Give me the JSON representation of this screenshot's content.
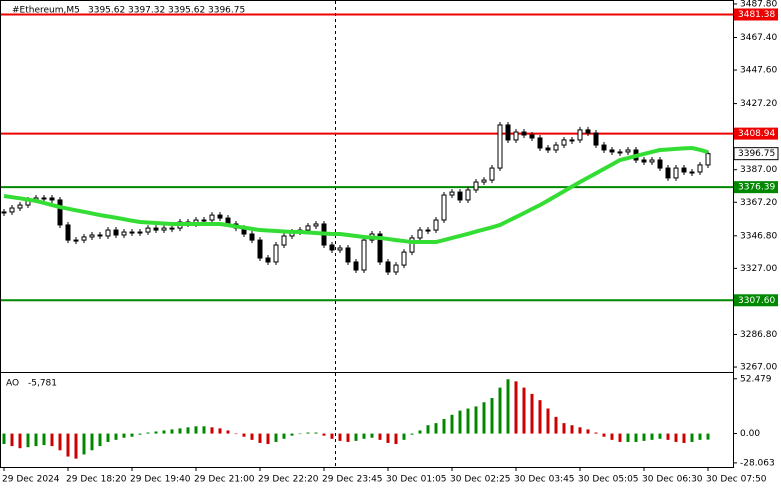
{
  "chart_data": [
    {
      "type": "candlestick",
      "title": "#Ethereum,M5",
      "quote": [
        3395.62,
        3397.32,
        3395.62,
        3396.75
      ],
      "categories": [
        "29 Dec 2024",
        null,
        null,
        null,
        null,
        null,
        null,
        null,
        "29 Dec 18:20",
        null,
        null,
        null,
        null,
        null,
        null,
        null,
        "29 Dec 19:40",
        null,
        null,
        null,
        null,
        null,
        null,
        null,
        "29 Dec 21:00",
        null,
        null,
        null,
        null,
        null,
        null,
        null,
        "29 Dec 22:20",
        null,
        null,
        null,
        null,
        null,
        null,
        null,
        "29 Dec 23:45",
        null,
        null,
        null,
        null,
        null,
        null,
        null,
        "30 Dec 01:05",
        null,
        null,
        null,
        null,
        null,
        null,
        null,
        "30 Dec 02:25",
        null,
        null,
        null,
        null,
        null,
        null,
        null,
        "30 Dec 03:45",
        null,
        null,
        null,
        null,
        null,
        null,
        null,
        "30 Dec 05:05",
        null,
        null,
        null,
        null,
        null,
        null,
        null,
        "30 Dec 06:30",
        null,
        null,
        null,
        null,
        null,
        null,
        null,
        "30 Dec 07:50"
      ],
      "series": [
        {
          "type": "candlestick",
          "color": "#000000",
          "values": [
            3361.3,
            3363.7,
            3365.5,
            3368.6,
            3369.8,
            3369.8,
            3368.6,
            3353.4,
            3344.2,
            3344.2,
            3346.1,
            3347.3,
            3346.7,
            3350.3,
            3347.3,
            3349.1,
            3349.1,
            3349.1,
            3351.5,
            3350.3,
            3351.5,
            3351.5,
            3355.2,
            3354.0,
            3356.4,
            3356.4,
            3359.4,
            3357.6,
            3354.0,
            3351.5,
            3347.9,
            3344.2,
            3333.3,
            3330.9,
            3341.2,
            3346.7,
            3349.1,
            3350.3,
            3352.8,
            3354.0,
            3341.2,
            3338.2,
            3339.4,
            3330.9,
            3326.0,
            3344.2,
            3347.9,
            3330.9,
            3324.8,
            3329.0,
            3336.9,
            3345.5,
            3350.3,
            3350.3,
            3356.4,
            3371.6,
            3373.4,
            3368.6,
            3374.7,
            3379.5,
            3380.7,
            3388.0,
            3414.2,
            3405.1,
            3409.9,
            3408.1,
            3406.3,
            3400.2,
            3399.0,
            3402.0,
            3405.1,
            3405.1,
            3411.2,
            3409.3,
            3402.0,
            3399.0,
            3397.8,
            3397.8,
            3399.0,
            3392.9,
            3391.7,
            3392.9,
            3388.0,
            3382.0,
            3388.0,
            3385.6,
            3385.6,
            3389.9,
            3396.75
          ]
        },
        {
          "type": "line",
          "color": "#33dd33",
          "values": [
            3371.0,
            3370.3,
            3369.6,
            3368.8,
            3368.0,
            3366.8,
            3365.5,
            3364.3,
            3363.3,
            3362.3,
            3361.4,
            3360.4,
            3359.4,
            3358.6,
            3357.8,
            3356.9,
            3356.0,
            3355.2,
            3354.9,
            3354.6,
            3354.3,
            3354.0,
            3354.0,
            3354.0,
            3354.0,
            3354.0,
            3354.0,
            3354.0,
            3353.3,
            3352.5,
            3351.8,
            3351.0,
            3350.3,
            3350.0,
            3349.7,
            3349.4,
            3349.2,
            3349.1,
            3348.8,
            3348.5,
            3348.2,
            3347.9,
            3347.9,
            3347.3,
            3346.7,
            3346.1,
            3345.7,
            3345.5,
            3344.9,
            3344.2,
            3343.6,
            3343.0,
            3343.0,
            3343.0,
            3343.0,
            3344.2,
            3345.5,
            3346.7,
            3348.0,
            3349.4,
            3350.7,
            3352.0,
            3353.4,
            3355.8,
            3358.2,
            3360.6,
            3363.1,
            3365.5,
            3368.3,
            3371.1,
            3373.9,
            3376.7,
            3379.5,
            3382.2,
            3384.8,
            3387.5,
            3390.2,
            3392.9,
            3394.1,
            3395.4,
            3396.6,
            3397.8,
            3399.0,
            3399.3,
            3399.7,
            3400.0,
            3400.2,
            3399.1,
            3397.7
          ]
        }
      ],
      "levels": [
        {
          "value": 3481.38,
          "color": "#ee0000"
        },
        {
          "value": 3408.94,
          "color": "#ee0000"
        },
        {
          "value": 3376.39,
          "color": "#008800"
        },
        {
          "value": 3307.6,
          "label": "3307.60",
          "color": "#008800"
        }
      ],
      "ylim": [
        3265.2,
        3490.2
      ],
      "yticks": [
        {
          "value": 3487.8,
          "label": "3487.80"
        },
        {
          "value": 3467.4,
          "label": "3467.40"
        },
        {
          "value": 3447.6,
          "label": "3447.60"
        },
        {
          "value": 3427.2,
          "label": "3427.20"
        },
        {
          "value": 3387,
          "label": "3387.00"
        },
        {
          "value": 3367.2,
          "label": "3367.20"
        },
        {
          "value": 3346.8,
          "label": "3346.80"
        },
        {
          "value": 3327,
          "label": "3327.00"
        },
        {
          "value": 3286.8,
          "label": "3286.80"
        },
        {
          "value": 3267,
          "label": "3267.00"
        }
      ]
    },
    {
      "type": "bar",
      "title": "AO",
      "current": {
        "value": -5.781,
        "label": "-5,781"
      },
      "up_color": "#008800",
      "down_color": "#cc0000",
      "values": [
        -10,
        -12,
        -14,
        -13,
        -12,
        -11,
        -12,
        -16,
        -22,
        -24,
        -20,
        -16,
        -12,
        -8,
        -6,
        -4,
        -3,
        -1,
        1,
        2,
        3,
        4,
        5,
        6,
        7,
        7,
        6,
        5,
        3,
        0,
        -3,
        -6,
        -9,
        -10,
        -8,
        -5,
        -2,
        0,
        1,
        1,
        -2,
        -5,
        -7,
        -8,
        -7,
        -5,
        -4,
        -6,
        -9,
        -10,
        -6,
        -1,
        3,
        8,
        10,
        14,
        18,
        22,
        24,
        26,
        30,
        34,
        44,
        52,
        50,
        44,
        38,
        32,
        24,
        16,
        10,
        8,
        6,
        4,
        1,
        -3,
        -6,
        -8,
        -8,
        -8,
        -7,
        -6,
        -5,
        -6,
        -8,
        -9,
        -8,
        -6,
        -5.781
      ],
      "ylim": [
        -32,
        58
      ],
      "yticks": [
        52.479,
        {
          "value": 0,
          "label": "0.00"
        },
        -28.063
      ]
    }
  ]
}
